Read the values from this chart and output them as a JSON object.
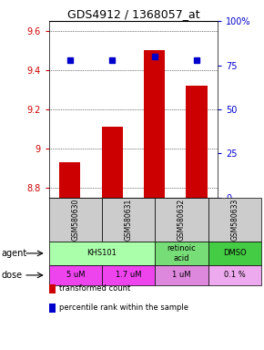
{
  "title": "GDS4912 / 1368057_at",
  "samples": [
    "GSM580630",
    "GSM580631",
    "GSM580632",
    "GSM580633"
  ],
  "bar_values": [
    8.93,
    9.11,
    9.5,
    9.32
  ],
  "dot_values": [
    78,
    78,
    80,
    78
  ],
  "bar_color": "#cc0000",
  "dot_color": "#0000cc",
  "ylim_left": [
    8.75,
    9.65
  ],
  "ylim_right": [
    0,
    100
  ],
  "yticks_left": [
    8.8,
    9.0,
    9.2,
    9.4,
    9.6
  ],
  "ytick_labels_left": [
    "8.8",
    "9",
    "9.2",
    "9.4",
    "9.6"
  ],
  "yticks_right": [
    0,
    25,
    50,
    75,
    100
  ],
  "ytick_labels_right": [
    "0",
    "25",
    "50",
    "75",
    "100%"
  ],
  "dose_labels": [
    "5 uM",
    "1.7 uM",
    "1 uM",
    "0.1 %"
  ],
  "dose_colors": [
    "#ee44ee",
    "#ee44ee",
    "#dd88dd",
    "#eeaaee"
  ],
  "gsm_bg": "#cccccc",
  "agent_data": [
    {
      "c0": 0,
      "c1": 2,
      "text": "KHS101",
      "color": "#aaffaa"
    },
    {
      "c0": 2,
      "c1": 3,
      "text": "retinoic\nacid",
      "color": "#77dd77"
    },
    {
      "c0": 3,
      "c1": 4,
      "text": "DMSO",
      "color": "#44cc44"
    }
  ],
  "legend_red": "transformed count",
  "legend_blue": "percentile rank within the sample",
  "bar_bottom": 8.75
}
